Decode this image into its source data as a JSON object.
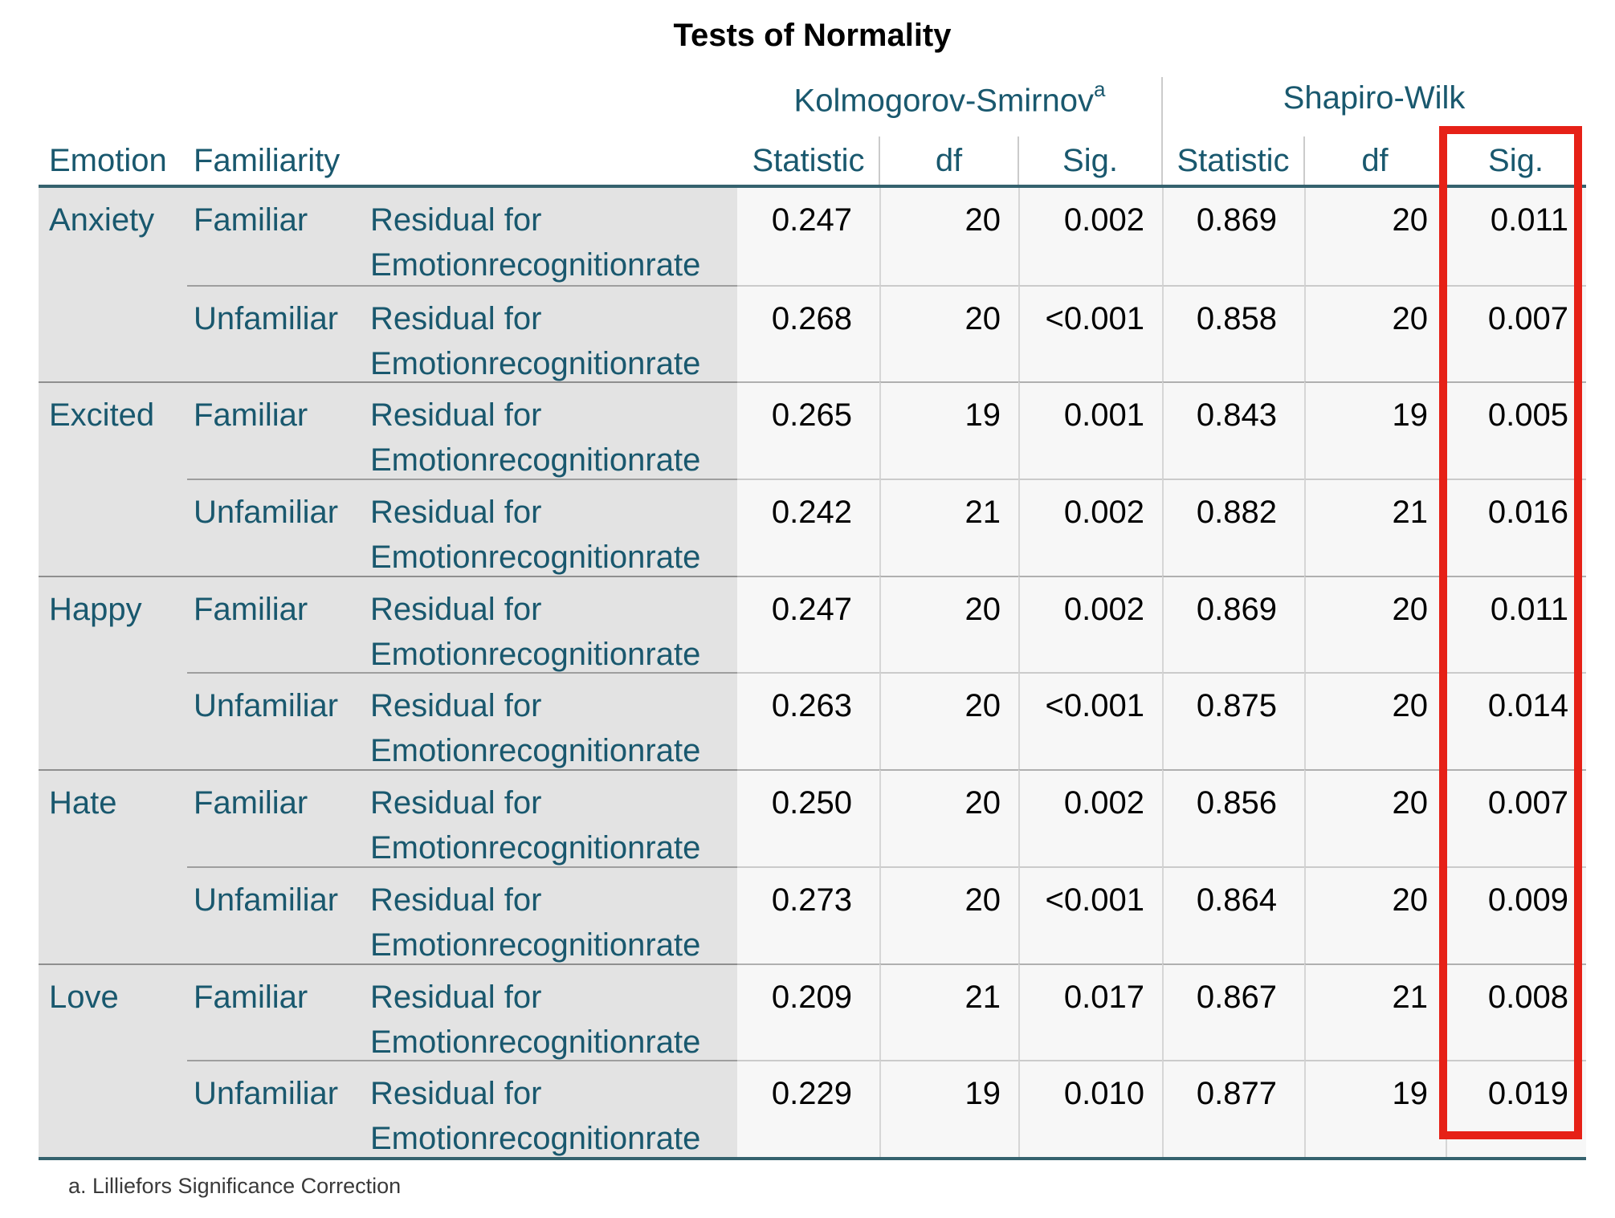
{
  "title": "Tests of Normality",
  "header": {
    "emotion_label": "Emotion",
    "familiarity_label": "Familiarity",
    "groups": [
      {
        "label": "Kolmogorov-Smirnov",
        "superscript": "a",
        "sub": {
          "statistic": "Statistic",
          "df": "df",
          "sig": "Sig."
        }
      },
      {
        "label": "Shapiro-Wilk",
        "superscript": "",
        "sub": {
          "statistic": "Statistic",
          "df": "df",
          "sig": "Sig."
        }
      }
    ]
  },
  "rows": [
    {
      "emotion": "Anxiety",
      "familiarity": "Familiar",
      "measure_line1": "Residual for",
      "measure_line2": "Emotionrecognitionrate",
      "ks": {
        "statistic": "0.247",
        "df": "20",
        "sig": "0.002"
      },
      "sw": {
        "statistic": "0.869",
        "df": "20",
        "sig": "0.011"
      }
    },
    {
      "emotion": "Anxiety",
      "familiarity": "Unfamiliar",
      "measure_line1": "Residual for",
      "measure_line2": "Emotionrecognitionrate",
      "ks": {
        "statistic": "0.268",
        "df": "20",
        "sig": "<0.001"
      },
      "sw": {
        "statistic": "0.858",
        "df": "20",
        "sig": "0.007"
      }
    },
    {
      "emotion": "Excited",
      "familiarity": "Familiar",
      "measure_line1": "Residual for",
      "measure_line2": "Emotionrecognitionrate",
      "ks": {
        "statistic": "0.265",
        "df": "19",
        "sig": "0.001"
      },
      "sw": {
        "statistic": "0.843",
        "df": "19",
        "sig": "0.005"
      }
    },
    {
      "emotion": "Excited",
      "familiarity": "Unfamiliar",
      "measure_line1": "Residual for",
      "measure_line2": "Emotionrecognitionrate",
      "ks": {
        "statistic": "0.242",
        "df": "21",
        "sig": "0.002"
      },
      "sw": {
        "statistic": "0.882",
        "df": "21",
        "sig": "0.016"
      }
    },
    {
      "emotion": "Happy",
      "familiarity": "Familiar",
      "measure_line1": "Residual for",
      "measure_line2": "Emotionrecognitionrate",
      "ks": {
        "statistic": "0.247",
        "df": "20",
        "sig": "0.002"
      },
      "sw": {
        "statistic": "0.869",
        "df": "20",
        "sig": "0.011"
      }
    },
    {
      "emotion": "Happy",
      "familiarity": "Unfamiliar",
      "measure_line1": "Residual for",
      "measure_line2": "Emotionrecognitionrate",
      "ks": {
        "statistic": "0.263",
        "df": "20",
        "sig": "<0.001"
      },
      "sw": {
        "statistic": "0.875",
        "df": "20",
        "sig": "0.014"
      }
    },
    {
      "emotion": "Hate",
      "familiarity": "Familiar",
      "measure_line1": "Residual for",
      "measure_line2": "Emotionrecognitionrate",
      "ks": {
        "statistic": "0.250",
        "df": "20",
        "sig": "0.002"
      },
      "sw": {
        "statistic": "0.856",
        "df": "20",
        "sig": "0.007"
      }
    },
    {
      "emotion": "Hate",
      "familiarity": "Unfamiliar",
      "measure_line1": "Residual for",
      "measure_line2": "Emotionrecognitionrate",
      "ks": {
        "statistic": "0.273",
        "df": "20",
        "sig": "<0.001"
      },
      "sw": {
        "statistic": "0.864",
        "df": "20",
        "sig": "0.009"
      }
    },
    {
      "emotion": "Love",
      "familiarity": "Familiar",
      "measure_line1": "Residual for",
      "measure_line2": "Emotionrecognitionrate",
      "ks": {
        "statistic": "0.209",
        "df": "21",
        "sig": "0.017"
      },
      "sw": {
        "statistic": "0.867",
        "df": "21",
        "sig": "0.008"
      }
    },
    {
      "emotion": "Love",
      "familiarity": "Unfamiliar",
      "measure_line1": "Residual for",
      "measure_line2": "Emotionrecognitionrate",
      "ks": {
        "statistic": "0.229",
        "df": "19",
        "sig": "0.010"
      },
      "sw": {
        "statistic": "0.877",
        "df": "19",
        "sig": "0.019"
      }
    }
  ],
  "footnote": "a. Lilliefors Significance Correction",
  "highlight": {
    "target": "Shapiro-Wilk Sig. column",
    "color": "#E62117"
  },
  "colors": {
    "heading_teal": "#19586E",
    "rule_teal": "#35626E",
    "stub_background": "#E3E3E3",
    "data_background": "#F7F7F7",
    "highlight_red": "#E62117"
  }
}
